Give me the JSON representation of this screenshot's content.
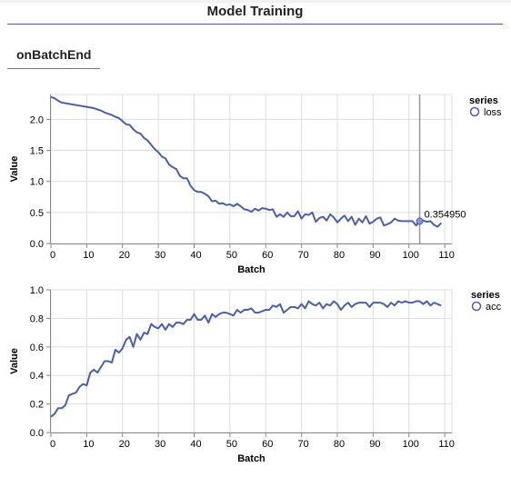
{
  "header": {
    "title": "Model Training"
  },
  "tab": {
    "label": "onBatchEnd"
  },
  "chart_data": [
    {
      "type": "line",
      "xlabel": "Batch",
      "ylabel": "Value",
      "xlim": [
        0,
        112
      ],
      "ylim": [
        0,
        2.4
      ],
      "xticks": [
        "0",
        "10",
        "20",
        "30",
        "40",
        "50",
        "60",
        "70",
        "80",
        "90",
        "100",
        "110"
      ],
      "yticks": [
        "0.0",
        "0.5",
        "1.0",
        "1.5",
        "2.0"
      ],
      "grid": true,
      "legend": {
        "title": "series",
        "position": "top-right"
      },
      "hover": {
        "x": 103,
        "label": "0.354950"
      },
      "series": [
        {
          "name": "loss",
          "color": "#4c5fa8",
          "values": [
            2.36,
            2.34,
            2.3,
            2.27,
            2.26,
            2.25,
            2.24,
            2.23,
            2.22,
            2.21,
            2.2,
            2.19,
            2.18,
            2.16,
            2.14,
            2.11,
            2.09,
            2.07,
            2.04,
            2.02,
            1.97,
            1.92,
            1.91,
            1.84,
            1.79,
            1.77,
            1.7,
            1.66,
            1.59,
            1.52,
            1.47,
            1.4,
            1.37,
            1.27,
            1.23,
            1.2,
            1.09,
            1.05,
            1.05,
            0.93,
            0.86,
            0.83,
            0.83,
            0.8,
            0.76,
            0.68,
            0.69,
            0.64,
            0.65,
            0.62,
            0.63,
            0.6,
            0.64,
            0.6,
            0.55,
            0.54,
            0.51,
            0.56,
            0.53,
            0.57,
            0.56,
            0.54,
            0.55,
            0.43,
            0.47,
            0.43,
            0.5,
            0.44,
            0.44,
            0.52,
            0.4,
            0.47,
            0.46,
            0.5,
            0.35,
            0.41,
            0.43,
            0.37,
            0.47,
            0.42,
            0.34,
            0.4,
            0.45,
            0.36,
            0.43,
            0.3,
            0.4,
            0.34,
            0.44,
            0.32,
            0.35,
            0.4,
            0.42,
            0.29,
            0.31,
            0.34,
            0.4,
            0.37,
            0.36,
            0.36,
            0.36,
            0.36,
            0.29,
            0.36,
            0.37,
            0.35,
            0.36,
            0.3,
            0.27,
            0.33
          ]
        }
      ]
    },
    {
      "type": "line",
      "xlabel": "Batch",
      "ylabel": "Value",
      "xlim": [
        0,
        112
      ],
      "ylim": [
        0,
        1.0
      ],
      "xticks": [
        "0",
        "10",
        "20",
        "30",
        "40",
        "50",
        "60",
        "70",
        "80",
        "90",
        "100",
        "110"
      ],
      "yticks": [
        "0.0",
        "0.2",
        "0.4",
        "0.6",
        "0.8",
        "1.0"
      ],
      "grid": true,
      "legend": {
        "title": "series",
        "position": "top-right"
      },
      "series": [
        {
          "name": "acc",
          "color": "#4c5fa8",
          "values": [
            0.11,
            0.13,
            0.17,
            0.17,
            0.19,
            0.26,
            0.27,
            0.28,
            0.32,
            0.34,
            0.33,
            0.42,
            0.44,
            0.42,
            0.46,
            0.5,
            0.5,
            0.49,
            0.58,
            0.56,
            0.59,
            0.65,
            0.67,
            0.6,
            0.69,
            0.65,
            0.7,
            0.69,
            0.76,
            0.74,
            0.73,
            0.76,
            0.72,
            0.76,
            0.74,
            0.77,
            0.77,
            0.76,
            0.79,
            0.79,
            0.83,
            0.79,
            0.79,
            0.82,
            0.77,
            0.83,
            0.81,
            0.83,
            0.84,
            0.84,
            0.83,
            0.82,
            0.86,
            0.84,
            0.86,
            0.86,
            0.87,
            0.84,
            0.84,
            0.85,
            0.86,
            0.86,
            0.89,
            0.88,
            0.9,
            0.84,
            0.86,
            0.88,
            0.88,
            0.87,
            0.9,
            0.87,
            0.92,
            0.9,
            0.89,
            0.91,
            0.87,
            0.9,
            0.89,
            0.92,
            0.9,
            0.86,
            0.89,
            0.91,
            0.88,
            0.9,
            0.91,
            0.91,
            0.91,
            0.88,
            0.91,
            0.91,
            0.91,
            0.9,
            0.88,
            0.91,
            0.89,
            0.92,
            0.91,
            0.92,
            0.91,
            0.91,
            0.92,
            0.92,
            0.9,
            0.92,
            0.89,
            0.91,
            0.9,
            0.89
          ]
        }
      ]
    }
  ]
}
